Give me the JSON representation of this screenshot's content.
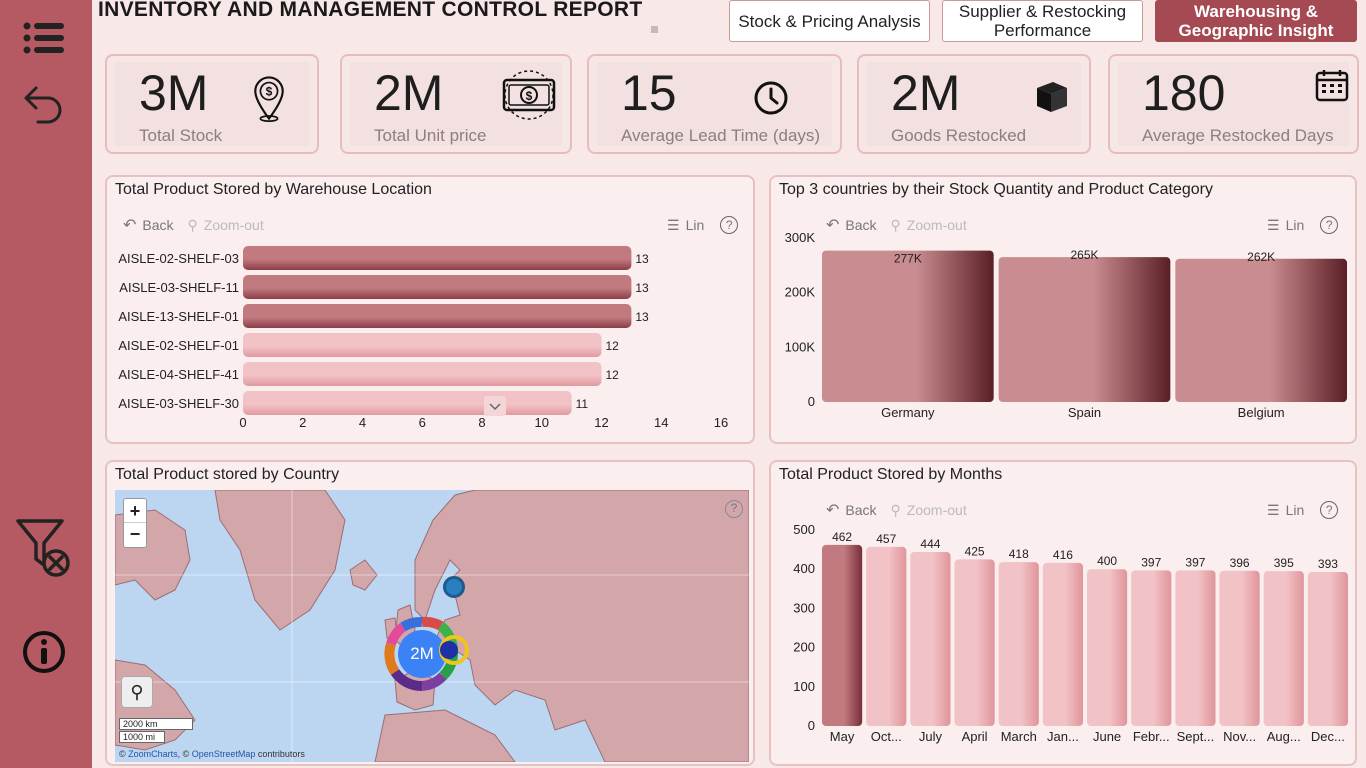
{
  "header": {
    "title": "INVENTORY AND MANAGEMENT CONTROL REPORT",
    "tabs": [
      {
        "label": "Stock & Pricing Analysis",
        "active": false
      },
      {
        "label": "Supplier & Restocking Performance",
        "active": false
      },
      {
        "label": "Warehousing & Geographic Insight",
        "active": true
      }
    ]
  },
  "sidebar": {
    "icons": [
      "menu-icon",
      "back-arrow-icon",
      "clear-filter-icon",
      "info-icon"
    ]
  },
  "kpis": [
    {
      "value": "3M",
      "label": "Total Stock",
      "icon": "location-dollar-icon"
    },
    {
      "value": "2M",
      "label": "Total Unit price",
      "icon": "banknote-icon"
    },
    {
      "value": "15",
      "label": "Average Lead Time (days)",
      "icon": "clock-icon"
    },
    {
      "value": "2M",
      "label": "Goods Restocked",
      "icon": "cube-icon"
    },
    {
      "value": "180",
      "label": "Average Restocked Days",
      "icon": "calendar-icon"
    }
  ],
  "toolbar": {
    "back": "Back",
    "zoom_out": "Zoom-out",
    "lin": "Lin",
    "help": "?"
  },
  "panels": {
    "warehouse": {
      "title": "Total Product Stored by Warehouse Location"
    },
    "countries": {
      "title": "Top 3 countries by their Stock Quantity and Product Category"
    },
    "map": {
      "title": "Total Product stored by Country",
      "center_value": "2M",
      "scale_km": "2000 km",
      "scale_mi": "1000 mi",
      "attribution_prefix": "© ",
      "attribution_zc": "ZoomCharts",
      "attribution_mid": ", © ",
      "attribution_osm": "OpenStreetMap",
      "attribution_suffix": " contributors",
      "zoom_in": "+",
      "zoom_out": "−"
    },
    "months": {
      "title": "Total Product Stored by Months"
    }
  },
  "chart_data": [
    {
      "type": "bar",
      "orientation": "horizontal",
      "title": "Total Product Stored by Warehouse Location",
      "categories": [
        "AISLE-02-SHELF-03",
        "AISLE-03-SHELF-11",
        "AISLE-13-SHELF-01",
        "AISLE-02-SHELF-01",
        "AISLE-04-SHELF-41",
        "AISLE-03-SHELF-30"
      ],
      "values": [
        13,
        13,
        13,
        12,
        12,
        11
      ],
      "xlim": [
        0,
        16
      ],
      "xticks": [
        "0",
        "2",
        "4",
        "6",
        "8",
        "10",
        "12",
        "14",
        "16"
      ],
      "colors": {
        "top": "#a85560",
        "rest": "#eab2b6"
      }
    },
    {
      "type": "bar",
      "title": "Top 3 countries by their Stock Quantity and Product Category",
      "categories": [
        "Germany",
        "Spain",
        "Belgium"
      ],
      "values": [
        277000,
        265000,
        262000
      ],
      "labels": [
        "277K",
        "265K",
        "262K"
      ],
      "ylim": [
        0,
        300000
      ],
      "yticks": [
        "0",
        "100K",
        "200K",
        "300K"
      ],
      "colors": {
        "bar": "#c98c90",
        "dark": "#5a1f26"
      }
    },
    {
      "type": "bar",
      "title": "Total Product Stored by Months",
      "categories": [
        "May",
        "Oct...",
        "July",
        "April",
        "March",
        "Jan...",
        "June",
        "Febr...",
        "Sept...",
        "Nov...",
        "Aug...",
        "Dec..."
      ],
      "values": [
        462,
        457,
        444,
        425,
        418,
        416,
        400,
        397,
        397,
        396,
        395,
        393
      ],
      "ylim": [
        0,
        500
      ],
      "yticks": [
        "0",
        "100",
        "200",
        "300",
        "400",
        "500"
      ],
      "colors": {
        "top": "#a85560",
        "rest": "#eab2b6"
      }
    }
  ]
}
